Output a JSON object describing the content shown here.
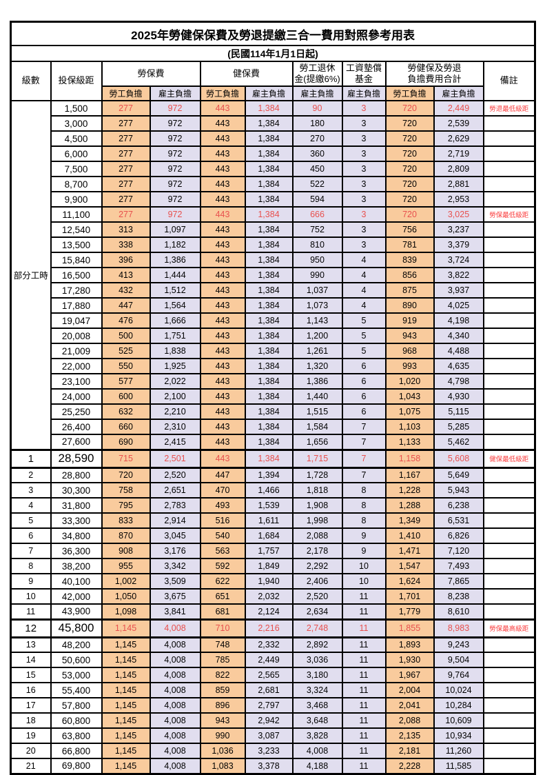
{
  "title": "2025年勞健保保費及勞退提繳三合一費用對照參考用表",
  "subtitle": "(民國114年1月1日起)",
  "colors": {
    "employee_col_bg": "#f9cb9d",
    "employer_col_bg": "#e1deef",
    "highlight_value_red": "#e8504e",
    "note_red": "#fa3b3b",
    "border": "#000000"
  },
  "columns": {
    "level": "級數",
    "bracket": "投保級距",
    "labor": "勞保費",
    "health": "健保費",
    "pension_l1": "勞工退休",
    "pension_l2": "金(提繳6%)",
    "fund_l1": "工資墊償",
    "fund_l2": "基金",
    "total_l1": "勞健保及勞退",
    "total_l2": "負擔費用合計",
    "note": "備註",
    "employee": "勞工負擔",
    "employer": "雇主負擔"
  },
  "part_time_label": "部分工時",
  "part_time_rowspan": 23,
  "rows": [
    {
      "level": "",
      "bracket": "1,500",
      "li_emp": "277",
      "li_er": "972",
      "hi_emp": "443",
      "hi_er": "1,384",
      "pension": "90",
      "fund": "3",
      "tot_emp": "720",
      "tot_er": "2,449",
      "note": "勞退最低級距",
      "red": true,
      "big": false
    },
    {
      "level": "",
      "bracket": "3,000",
      "li_emp": "277",
      "li_er": "972",
      "hi_emp": "443",
      "hi_er": "1,384",
      "pension": "180",
      "fund": "3",
      "tot_emp": "720",
      "tot_er": "2,539",
      "note": "",
      "red": false,
      "big": false
    },
    {
      "level": "",
      "bracket": "4,500",
      "li_emp": "277",
      "li_er": "972",
      "hi_emp": "443",
      "hi_er": "1,384",
      "pension": "270",
      "fund": "3",
      "tot_emp": "720",
      "tot_er": "2,629",
      "note": "",
      "red": false,
      "big": false
    },
    {
      "level": "",
      "bracket": "6,000",
      "li_emp": "277",
      "li_er": "972",
      "hi_emp": "443",
      "hi_er": "1,384",
      "pension": "360",
      "fund": "3",
      "tot_emp": "720",
      "tot_er": "2,719",
      "note": "",
      "red": false,
      "big": false
    },
    {
      "level": "",
      "bracket": "7,500",
      "li_emp": "277",
      "li_er": "972",
      "hi_emp": "443",
      "hi_er": "1,384",
      "pension": "450",
      "fund": "3",
      "tot_emp": "720",
      "tot_er": "2,809",
      "note": "",
      "red": false,
      "big": false
    },
    {
      "level": "",
      "bracket": "8,700",
      "li_emp": "277",
      "li_er": "972",
      "hi_emp": "443",
      "hi_er": "1,384",
      "pension": "522",
      "fund": "3",
      "tot_emp": "720",
      "tot_er": "2,881",
      "note": "",
      "red": false,
      "big": false
    },
    {
      "level": "",
      "bracket": "9,900",
      "li_emp": "277",
      "li_er": "972",
      "hi_emp": "443",
      "hi_er": "1,384",
      "pension": "594",
      "fund": "3",
      "tot_emp": "720",
      "tot_er": "2,953",
      "note": "",
      "red": false,
      "big": false
    },
    {
      "level": "",
      "bracket": "11,100",
      "li_emp": "277",
      "li_er": "972",
      "hi_emp": "443",
      "hi_er": "1,384",
      "pension": "666",
      "fund": "3",
      "tot_emp": "720",
      "tot_er": "3,025",
      "note": "勞保最低級距",
      "red": true,
      "big": false
    },
    {
      "level": "",
      "bracket": "12,540",
      "li_emp": "313",
      "li_er": "1,097",
      "hi_emp": "443",
      "hi_er": "1,384",
      "pension": "752",
      "fund": "3",
      "tot_emp": "756",
      "tot_er": "3,237",
      "note": "",
      "red": false,
      "big": false
    },
    {
      "level": "",
      "bracket": "13,500",
      "li_emp": "338",
      "li_er": "1,182",
      "hi_emp": "443",
      "hi_er": "1,384",
      "pension": "810",
      "fund": "3",
      "tot_emp": "781",
      "tot_er": "3,379",
      "note": "",
      "red": false,
      "big": false
    },
    {
      "level": "",
      "bracket": "15,840",
      "li_emp": "396",
      "li_er": "1,386",
      "hi_emp": "443",
      "hi_er": "1,384",
      "pension": "950",
      "fund": "4",
      "tot_emp": "839",
      "tot_er": "3,724",
      "note": "",
      "red": false,
      "big": false
    },
    {
      "level": "",
      "bracket": "16,500",
      "li_emp": "413",
      "li_er": "1,444",
      "hi_emp": "443",
      "hi_er": "1,384",
      "pension": "990",
      "fund": "4",
      "tot_emp": "856",
      "tot_er": "3,822",
      "note": "",
      "red": false,
      "big": false
    },
    {
      "level": "",
      "bracket": "17,280",
      "li_emp": "432",
      "li_er": "1,512",
      "hi_emp": "443",
      "hi_er": "1,384",
      "pension": "1,037",
      "fund": "4",
      "tot_emp": "875",
      "tot_er": "3,937",
      "note": "",
      "red": false,
      "big": false
    },
    {
      "level": "",
      "bracket": "17,880",
      "li_emp": "447",
      "li_er": "1,564",
      "hi_emp": "443",
      "hi_er": "1,384",
      "pension": "1,073",
      "fund": "4",
      "tot_emp": "890",
      "tot_er": "4,025",
      "note": "",
      "red": false,
      "big": false
    },
    {
      "level": "",
      "bracket": "19,047",
      "li_emp": "476",
      "li_er": "1,666",
      "hi_emp": "443",
      "hi_er": "1,384",
      "pension": "1,143",
      "fund": "5",
      "tot_emp": "919",
      "tot_er": "4,198",
      "note": "",
      "red": false,
      "big": false
    },
    {
      "level": "",
      "bracket": "20,008",
      "li_emp": "500",
      "li_er": "1,751",
      "hi_emp": "443",
      "hi_er": "1,384",
      "pension": "1,200",
      "fund": "5",
      "tot_emp": "943",
      "tot_er": "4,340",
      "note": "",
      "red": false,
      "big": false
    },
    {
      "level": "",
      "bracket": "21,009",
      "li_emp": "525",
      "li_er": "1,838",
      "hi_emp": "443",
      "hi_er": "1,384",
      "pension": "1,261",
      "fund": "5",
      "tot_emp": "968",
      "tot_er": "4,488",
      "note": "",
      "red": false,
      "big": false
    },
    {
      "level": "",
      "bracket": "22,000",
      "li_emp": "550",
      "li_er": "1,925",
      "hi_emp": "443",
      "hi_er": "1,384",
      "pension": "1,320",
      "fund": "6",
      "tot_emp": "993",
      "tot_er": "4,635",
      "note": "",
      "red": false,
      "big": false
    },
    {
      "level": "",
      "bracket": "23,100",
      "li_emp": "577",
      "li_er": "2,022",
      "hi_emp": "443",
      "hi_er": "1,384",
      "pension": "1,386",
      "fund": "6",
      "tot_emp": "1,020",
      "tot_er": "4,798",
      "note": "",
      "red": false,
      "big": false
    },
    {
      "level": "",
      "bracket": "24,000",
      "li_emp": "600",
      "li_er": "2,100",
      "hi_emp": "443",
      "hi_er": "1,384",
      "pension": "1,440",
      "fund": "6",
      "tot_emp": "1,043",
      "tot_er": "4,930",
      "note": "",
      "red": false,
      "big": false
    },
    {
      "level": "",
      "bracket": "25,250",
      "li_emp": "632",
      "li_er": "2,210",
      "hi_emp": "443",
      "hi_er": "1,384",
      "pension": "1,515",
      "fund": "6",
      "tot_emp": "1,075",
      "tot_er": "5,115",
      "note": "",
      "red": false,
      "big": false
    },
    {
      "level": "",
      "bracket": "26,400",
      "li_emp": "660",
      "li_er": "2,310",
      "hi_emp": "443",
      "hi_er": "1,384",
      "pension": "1,584",
      "fund": "7",
      "tot_emp": "1,103",
      "tot_er": "5,285",
      "note": "",
      "red": false,
      "big": false
    },
    {
      "level": "",
      "bracket": "27,600",
      "li_emp": "690",
      "li_er": "2,415",
      "hi_emp": "443",
      "hi_er": "1,384",
      "pension": "1,656",
      "fund": "7",
      "tot_emp": "1,133",
      "tot_er": "5,462",
      "note": "",
      "red": false,
      "big": false
    },
    {
      "level": "1",
      "bracket": "28,590",
      "li_emp": "715",
      "li_er": "2,501",
      "hi_emp": "443",
      "hi_er": "1,384",
      "pension": "1,715",
      "fund": "7",
      "tot_emp": "1,158",
      "tot_er": "5,608",
      "note": "健保最低級距",
      "red": true,
      "big": true
    },
    {
      "level": "2",
      "bracket": "28,800",
      "li_emp": "720",
      "li_er": "2,520",
      "hi_emp": "447",
      "hi_er": "1,394",
      "pension": "1,728",
      "fund": "7",
      "tot_emp": "1,167",
      "tot_er": "5,649",
      "note": "",
      "red": false,
      "big": false
    },
    {
      "level": "3",
      "bracket": "30,300",
      "li_emp": "758",
      "li_er": "2,651",
      "hi_emp": "470",
      "hi_er": "1,466",
      "pension": "1,818",
      "fund": "8",
      "tot_emp": "1,228",
      "tot_er": "5,943",
      "note": "",
      "red": false,
      "big": false
    },
    {
      "level": "4",
      "bracket": "31,800",
      "li_emp": "795",
      "li_er": "2,783",
      "hi_emp": "493",
      "hi_er": "1,539",
      "pension": "1,908",
      "fund": "8",
      "tot_emp": "1,288",
      "tot_er": "6,238",
      "note": "",
      "red": false,
      "big": false
    },
    {
      "level": "5",
      "bracket": "33,300",
      "li_emp": "833",
      "li_er": "2,914",
      "hi_emp": "516",
      "hi_er": "1,611",
      "pension": "1,998",
      "fund": "8",
      "tot_emp": "1,349",
      "tot_er": "6,531",
      "note": "",
      "red": false,
      "big": false
    },
    {
      "level": "6",
      "bracket": "34,800",
      "li_emp": "870",
      "li_er": "3,045",
      "hi_emp": "540",
      "hi_er": "1,684",
      "pension": "2,088",
      "fund": "9",
      "tot_emp": "1,410",
      "tot_er": "6,826",
      "note": "",
      "red": false,
      "big": false
    },
    {
      "level": "7",
      "bracket": "36,300",
      "li_emp": "908",
      "li_er": "3,176",
      "hi_emp": "563",
      "hi_er": "1,757",
      "pension": "2,178",
      "fund": "9",
      "tot_emp": "1,471",
      "tot_er": "7,120",
      "note": "",
      "red": false,
      "big": false
    },
    {
      "level": "8",
      "bracket": "38,200",
      "li_emp": "955",
      "li_er": "3,342",
      "hi_emp": "592",
      "hi_er": "1,849",
      "pension": "2,292",
      "fund": "10",
      "tot_emp": "1,547",
      "tot_er": "7,493",
      "note": "",
      "red": false,
      "big": false
    },
    {
      "level": "9",
      "bracket": "40,100",
      "li_emp": "1,002",
      "li_er": "3,509",
      "hi_emp": "622",
      "hi_er": "1,940",
      "pension": "2,406",
      "fund": "10",
      "tot_emp": "1,624",
      "tot_er": "7,865",
      "note": "",
      "red": false,
      "big": false
    },
    {
      "level": "10",
      "bracket": "42,000",
      "li_emp": "1,050",
      "li_er": "3,675",
      "hi_emp": "651",
      "hi_er": "2,032",
      "pension": "2,520",
      "fund": "11",
      "tot_emp": "1,701",
      "tot_er": "8,238",
      "note": "",
      "red": false,
      "big": false
    },
    {
      "level": "11",
      "bracket": "43,900",
      "li_emp": "1,098",
      "li_er": "3,841",
      "hi_emp": "681",
      "hi_er": "2,124",
      "pension": "2,634",
      "fund": "11",
      "tot_emp": "1,779",
      "tot_er": "8,610",
      "note": "",
      "red": false,
      "big": false
    },
    {
      "level": "12",
      "bracket": "45,800",
      "li_emp": "1,145",
      "li_er": "4,008",
      "hi_emp": "710",
      "hi_er": "2,216",
      "pension": "2,748",
      "fund": "11",
      "tot_emp": "1,855",
      "tot_er": "8,983",
      "note": "勞保最高級距",
      "red": true,
      "big": true
    },
    {
      "level": "13",
      "bracket": "48,200",
      "li_emp": "1,145",
      "li_er": "4,008",
      "hi_emp": "748",
      "hi_er": "2,332",
      "pension": "2,892",
      "fund": "11",
      "tot_emp": "1,893",
      "tot_er": "9,243",
      "note": "",
      "red": false,
      "big": false
    },
    {
      "level": "14",
      "bracket": "50,600",
      "li_emp": "1,145",
      "li_er": "4,008",
      "hi_emp": "785",
      "hi_er": "2,449",
      "pension": "3,036",
      "fund": "11",
      "tot_emp": "1,930",
      "tot_er": "9,504",
      "note": "",
      "red": false,
      "big": false
    },
    {
      "level": "15",
      "bracket": "53,000",
      "li_emp": "1,145",
      "li_er": "4,008",
      "hi_emp": "822",
      "hi_er": "2,565",
      "pension": "3,180",
      "fund": "11",
      "tot_emp": "1,967",
      "tot_er": "9,764",
      "note": "",
      "red": false,
      "big": false
    },
    {
      "level": "16",
      "bracket": "55,400",
      "li_emp": "1,145",
      "li_er": "4,008",
      "hi_emp": "859",
      "hi_er": "2,681",
      "pension": "3,324",
      "fund": "11",
      "tot_emp": "2,004",
      "tot_er": "10,024",
      "note": "",
      "red": false,
      "big": false
    },
    {
      "level": "17",
      "bracket": "57,800",
      "li_emp": "1,145",
      "li_er": "4,008",
      "hi_emp": "896",
      "hi_er": "2,797",
      "pension": "3,468",
      "fund": "11",
      "tot_emp": "2,041",
      "tot_er": "10,284",
      "note": "",
      "red": false,
      "big": false
    },
    {
      "level": "18",
      "bracket": "60,800",
      "li_emp": "1,145",
      "li_er": "4,008",
      "hi_emp": "943",
      "hi_er": "2,942",
      "pension": "3,648",
      "fund": "11",
      "tot_emp": "2,088",
      "tot_er": "10,609",
      "note": "",
      "red": false,
      "big": false
    },
    {
      "level": "19",
      "bracket": "63,800",
      "li_emp": "1,145",
      "li_er": "4,008",
      "hi_emp": "990",
      "hi_er": "3,087",
      "pension": "3,828",
      "fund": "11",
      "tot_emp": "2,135",
      "tot_er": "10,934",
      "note": "",
      "red": false,
      "big": false
    },
    {
      "level": "20",
      "bracket": "66,800",
      "li_emp": "1,145",
      "li_er": "4,008",
      "hi_emp": "1,036",
      "hi_er": "3,233",
      "pension": "4,008",
      "fund": "11",
      "tot_emp": "2,181",
      "tot_er": "11,260",
      "note": "",
      "red": false,
      "big": false
    },
    {
      "level": "21",
      "bracket": "69,800",
      "li_emp": "1,145",
      "li_er": "4,008",
      "hi_emp": "1,083",
      "hi_er": "3,378",
      "pension": "4,188",
      "fund": "11",
      "tot_emp": "2,228",
      "tot_er": "11,585",
      "note": "",
      "red": false,
      "big": false
    }
  ]
}
